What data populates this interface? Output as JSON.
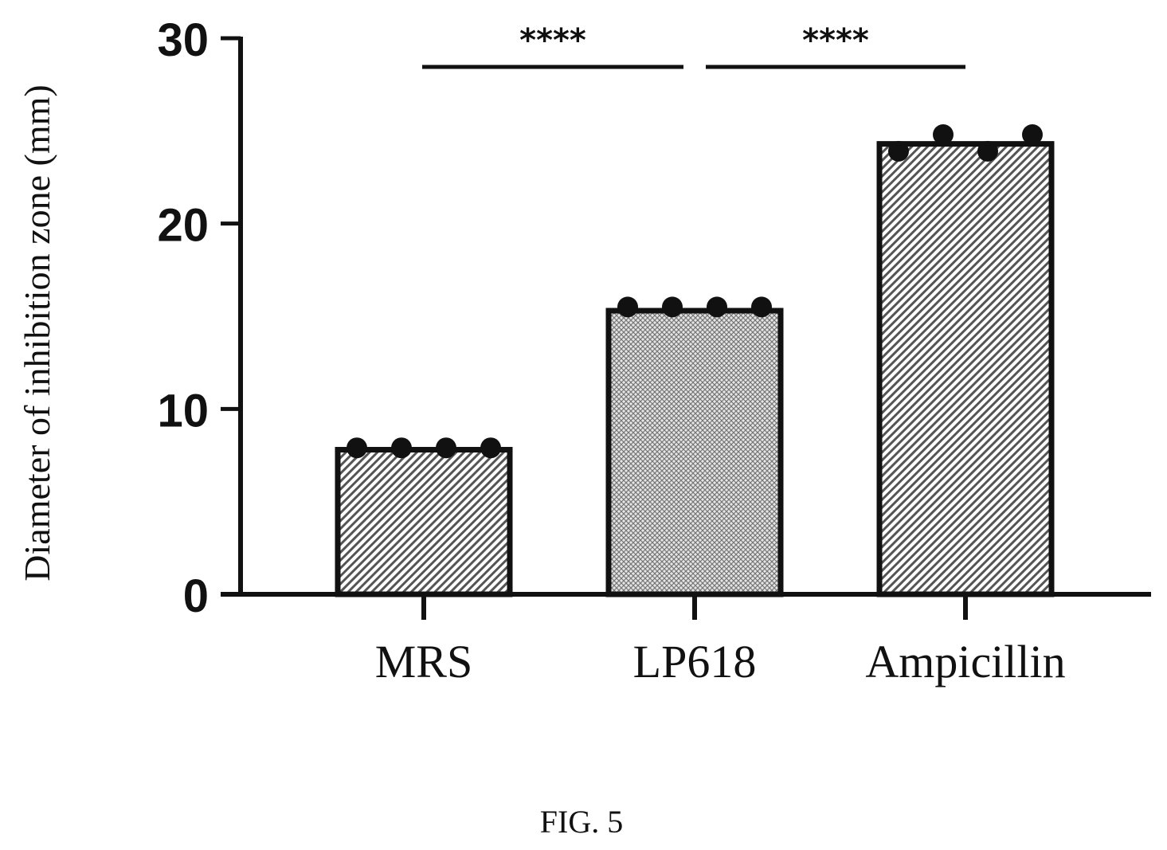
{
  "chart_data": {
    "type": "bar",
    "ylabel": "Diameter of inhibition zone (mm)",
    "ylim": [
      0,
      30
    ],
    "yticks": [
      "0",
      "10",
      "20",
      "30"
    ],
    "categories": [
      "MRS",
      "LP618",
      "Ampicillin"
    ],
    "values": [
      7.8,
      15.3,
      24.3
    ],
    "points": [
      [
        7.9,
        7.9,
        7.9,
        7.9
      ],
      [
        15.5,
        15.5,
        15.5,
        15.5
      ],
      [
        23.9,
        24.8,
        23.9,
        24.8
      ]
    ],
    "bar_patterns": [
      "diagonal-hatch",
      "crosshatch",
      "diagonal-hatch"
    ],
    "significance": [
      {
        "from": "MRS",
        "to": "LP618",
        "label": "****"
      },
      {
        "from": "LP618",
        "to": "Ampicillin",
        "label": "****"
      }
    ],
    "grid": false,
    "legend": "none"
  },
  "caption": "FIG. 5",
  "colors": {
    "ink": "#111111",
    "background": "#ffffff"
  }
}
